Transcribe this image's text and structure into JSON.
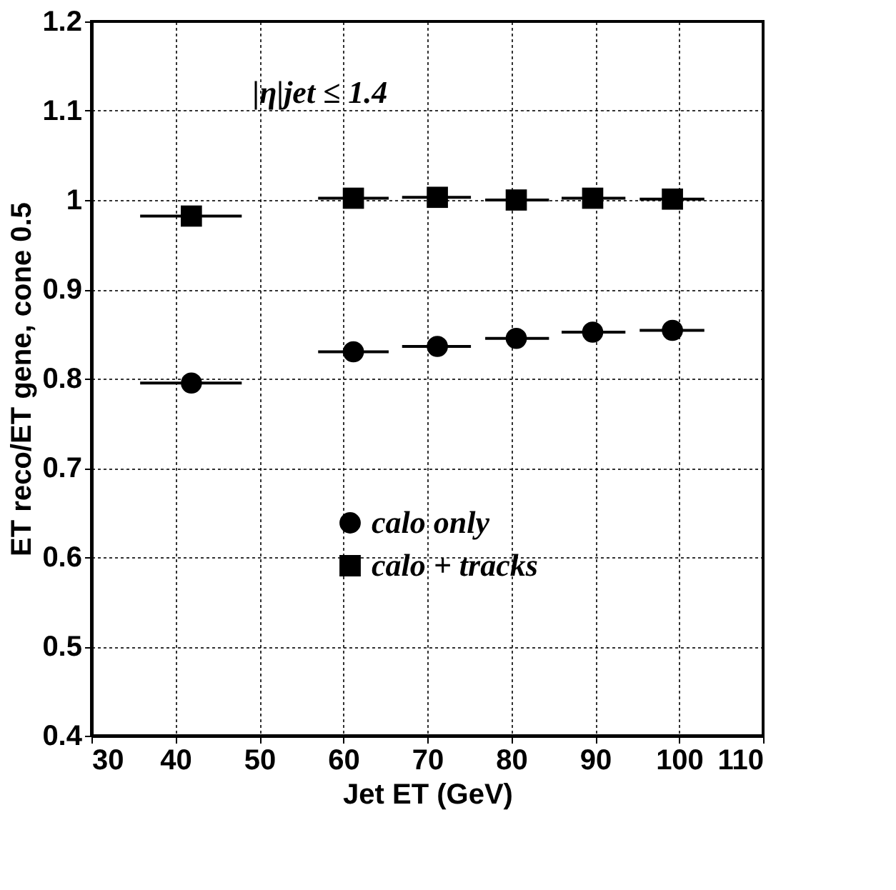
{
  "chart_data": {
    "type": "scatter",
    "xlabel": "Jet ET (GeV)",
    "ylabel": "ET reco/ET gene, cone 0.5",
    "annotations": [
      "|η|jet ≤ 1.4"
    ],
    "series": [
      {
        "name": "calo only",
        "color": "#000000",
        "marker": "circle",
        "x": [
          41.9,
          61.2,
          71.2,
          80.6,
          89.7,
          99.2
        ],
        "values": [
          0.795,
          0.83,
          0.836,
          0.845,
          0.852,
          0.854
        ],
        "xerrors": [
          [
            35.8,
            47.9
          ],
          [
            57.0,
            65.4
          ],
          [
            67.0,
            75.2
          ],
          [
            76.9,
            84.5
          ],
          [
            86.0,
            93.6
          ],
          [
            95.3,
            103.0
          ]
        ]
      },
      {
        "name": "calo + tracks",
        "color": "#000000",
        "marker": "square",
        "x": [
          41.9,
          61.2,
          71.2,
          80.6,
          89.7,
          99.2
        ],
        "values": [
          0.982,
          1.002,
          1.003,
          1.0,
          1.002,
          1.001
        ],
        "xerrors": [
          [
            35.8,
            47.9
          ],
          [
            57.0,
            65.4
          ],
          [
            67.0,
            75.2
          ],
          [
            76.9,
            84.5
          ],
          [
            86.0,
            93.6
          ],
          [
            95.3,
            103.0
          ]
        ]
      }
    ],
    "xlim": [
      30,
      110
    ],
    "xticks": [
      30,
      40,
      50,
      60,
      70,
      80,
      90,
      100,
      110
    ],
    "ylim": [
      0.4,
      1.2
    ],
    "yticks": [
      0.4,
      0.5,
      0.6,
      0.7,
      0.8,
      0.9,
      1,
      1.1,
      1.2
    ],
    "grid": true,
    "legend": "bottom"
  }
}
